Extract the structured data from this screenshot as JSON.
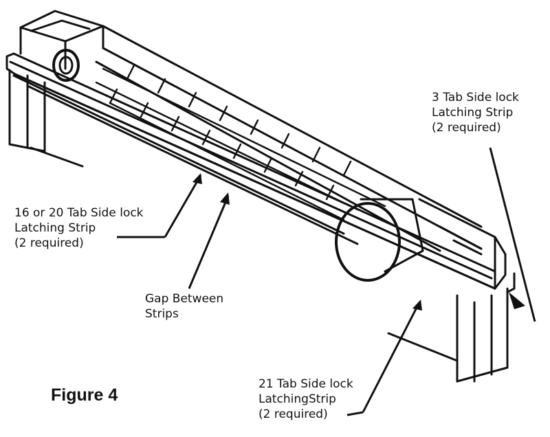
{
  "figure": {
    "caption": "Figure 4"
  },
  "labels": {
    "tab3": {
      "line1": "3 Tab Side lock",
      "line2": "Latching Strip",
      "line3": "(2 required)"
    },
    "tab16_20": {
      "line1": "16 or 20 Tab Side lock",
      "line2": "Latching Strip",
      "line3": "(2 required)"
    },
    "gap": {
      "line1": "Gap Between",
      "line2": "Strips"
    },
    "tab21": {
      "line1": "21 Tab Side lock",
      "line2": "LatchingStrip",
      "line3": "(2 required)"
    }
  }
}
